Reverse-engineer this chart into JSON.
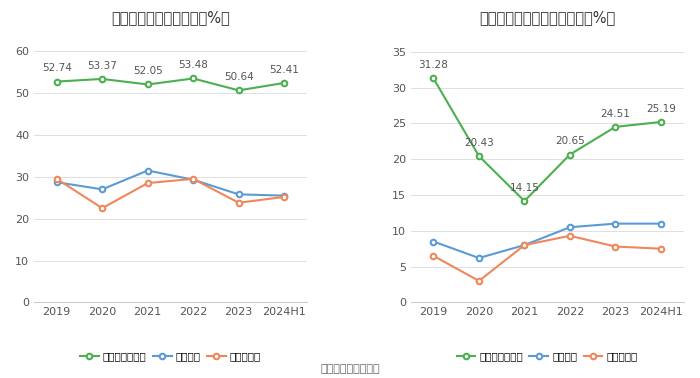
{
  "chart1": {
    "title": "近年来资产负债率情况（%）",
    "x_labels": [
      "2019",
      "2020",
      "2021",
      "2022",
      "2023",
      "2024H1"
    ],
    "company": [
      52.74,
      53.37,
      52.05,
      53.48,
      50.64,
      52.41
    ],
    "industry_avg": [
      28.7,
      27.0,
      31.5,
      29.3,
      25.8,
      25.5
    ],
    "industry_median": [
      29.5,
      22.5,
      28.5,
      29.5,
      23.8,
      25.2
    ],
    "ylim": [
      0,
      65
    ],
    "yticks": [
      0,
      10,
      20,
      30,
      40,
      50,
      60
    ],
    "legend": [
      "公司资产负债率",
      "行业均值",
      "行业中位数"
    ]
  },
  "chart2": {
    "title": "近年来有息资产负债率情况（%）",
    "x_labels": [
      "2019",
      "2020",
      "2021",
      "2022",
      "2023",
      "2024H1"
    ],
    "company": [
      31.28,
      20.43,
      14.15,
      20.65,
      24.51,
      25.19
    ],
    "industry_avg": [
      8.5,
      6.2,
      8.0,
      10.5,
      11.0,
      11.0
    ],
    "industry_median": [
      6.5,
      3.0,
      8.0,
      9.3,
      7.8,
      7.5
    ],
    "ylim": [
      0,
      38
    ],
    "yticks": [
      0,
      5,
      10,
      15,
      20,
      25,
      30,
      35
    ],
    "legend": [
      "有息资产负债率",
      "行业均值",
      "行业中位数"
    ]
  },
  "source_text": "数据来源：恒生聚源",
  "green_color": "#4CAF50",
  "blue_color": "#5b9bd5",
  "orange_color": "#f0875a",
  "bg_color": "#ffffff",
  "grid_color": "#e0e0e0",
  "title_fontsize": 10.5,
  "label_fontsize": 8,
  "annotation_fontsize": 7.5,
  "legend_fontsize": 7.5
}
